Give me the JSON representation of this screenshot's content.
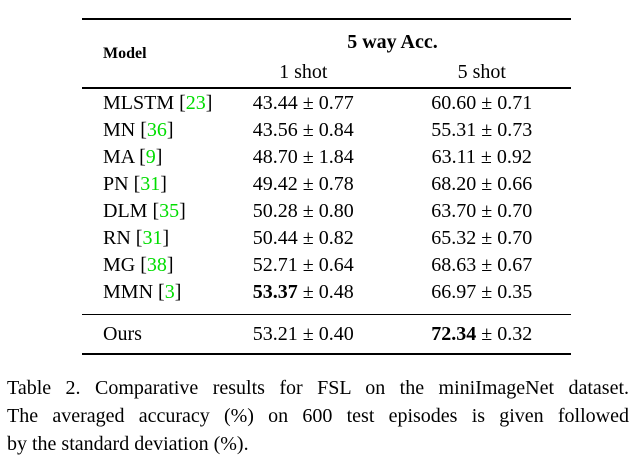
{
  "page": {
    "background": "#ffffff",
    "text_color": "#000000"
  },
  "colors": {
    "citation_green": "#00dd00",
    "rule_black": "#000000"
  },
  "table": {
    "header": {
      "model_label": "Model",
      "group_label": "5 way Acc.",
      "one_shot_label": "1 shot",
      "five_shot_label": "5 shot"
    },
    "punct": {
      "open_bracket": "[",
      "close_bracket": "]",
      "plus_minus": "±"
    },
    "rows": [
      {
        "model": "MLSTM",
        "cite": "23",
        "one_shot_mean": "43.44",
        "one_shot_std": "0.77",
        "five_shot_mean": "60.60",
        "five_shot_std": "0.71"
      },
      {
        "model": "MN",
        "cite": "36",
        "one_shot_mean": "43.56",
        "one_shot_std": "0.84",
        "five_shot_mean": "55.31",
        "five_shot_std": "0.73"
      },
      {
        "model": "MA",
        "cite": "9",
        "one_shot_mean": "48.70",
        "one_shot_std": "1.84",
        "five_shot_mean": "63.11",
        "five_shot_std": "0.92"
      },
      {
        "model": "PN",
        "cite": "31",
        "one_shot_mean": "49.42",
        "one_shot_std": "0.78",
        "five_shot_mean": "68.20",
        "five_shot_std": "0.66"
      },
      {
        "model": "DLM",
        "cite": "35",
        "one_shot_mean": "50.28",
        "one_shot_std": "0.80",
        "five_shot_mean": "63.70",
        "five_shot_std": "0.70"
      },
      {
        "model": "RN",
        "cite": "31",
        "one_shot_mean": "50.44",
        "one_shot_std": "0.82",
        "five_shot_mean": "65.32",
        "five_shot_std": "0.70"
      },
      {
        "model": "MG",
        "cite": "38",
        "one_shot_mean": "52.71",
        "one_shot_std": "0.64",
        "five_shot_mean": "68.63",
        "five_shot_std": "0.67"
      },
      {
        "model": "MMN",
        "cite": "3",
        "one_shot_mean": "53.37",
        "one_shot_std": "0.48",
        "five_shot_mean": "66.97",
        "five_shot_std": "0.35"
      }
    ],
    "ours_row": {
      "model": "Ours",
      "one_shot_mean": "53.21",
      "one_shot_std": "0.40",
      "five_shot_mean": "72.34",
      "five_shot_std": "0.32"
    }
  },
  "caption": {
    "lines": [
      "Table 2. Comparative results for FSL on the miniImageNet dataset.",
      "The averaged accuracy (%) on 600 test episodes is given followed",
      "by the standard deviation (%)."
    ]
  }
}
